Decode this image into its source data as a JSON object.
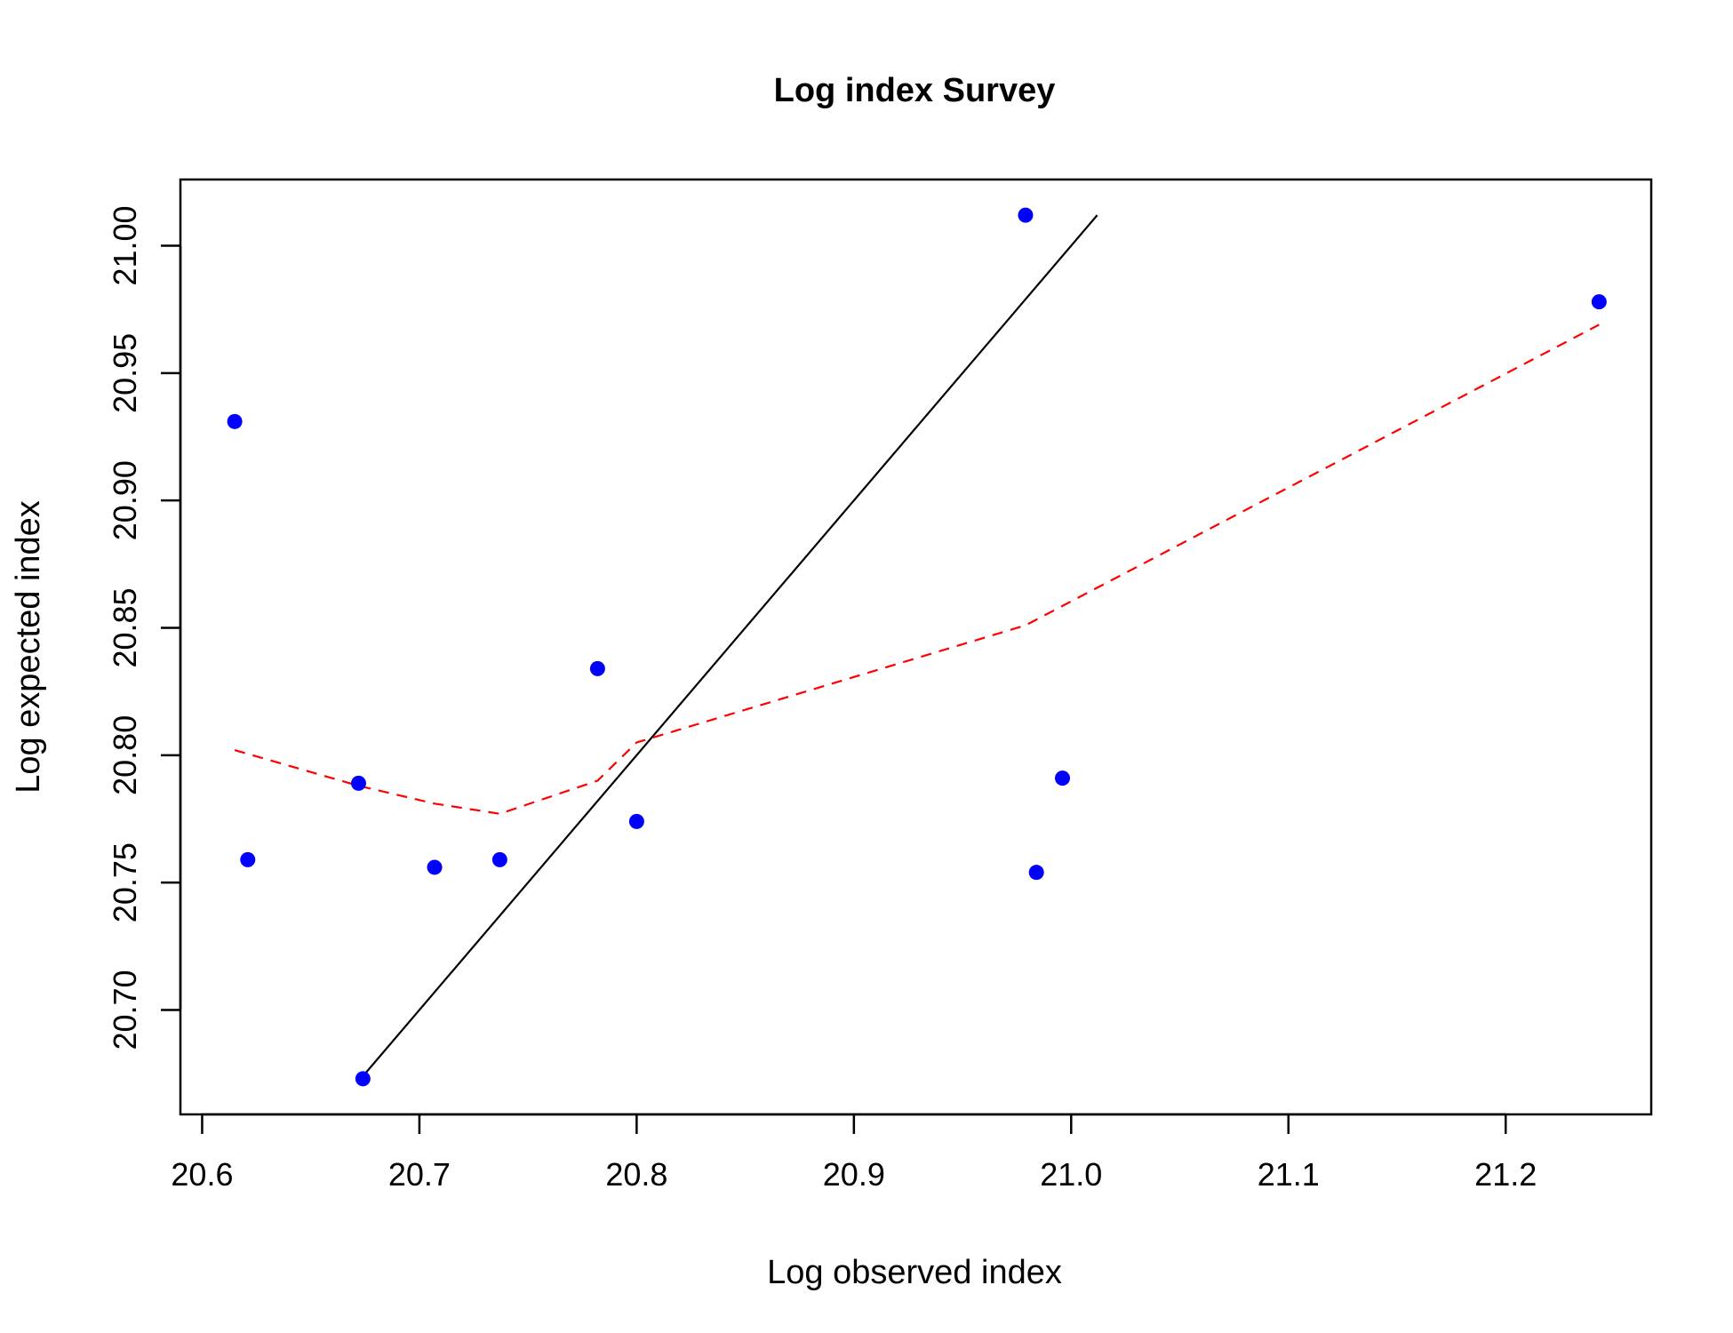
{
  "chart_data": {
    "type": "scatter",
    "title": "Log index Survey",
    "xlabel": "Log observed index",
    "ylabel": "Log expected index",
    "xlim": [
      20.59,
      21.267
    ],
    "ylim": [
      20.659,
      21.026
    ],
    "x_ticks": [
      20.6,
      20.7,
      20.8,
      20.9,
      21.0,
      21.1,
      21.2
    ],
    "x_tick_labels": [
      "20.6",
      "20.7",
      "20.8",
      "20.9",
      "21.0",
      "21.1",
      "21.2"
    ],
    "y_ticks": [
      20.7,
      20.75,
      20.8,
      20.85,
      20.9,
      20.95,
      21.0
    ],
    "y_tick_labels": [
      "20.70",
      "20.75",
      "20.80",
      "20.85",
      "20.90",
      "20.95",
      "21.00"
    ],
    "grid": false,
    "points": {
      "color": "#0000ff",
      "x": [
        20.615,
        20.621,
        20.672,
        20.674,
        20.707,
        20.737,
        20.782,
        20.8,
        20.979,
        20.984,
        20.996,
        21.243
      ],
      "y": [
        20.931,
        20.759,
        20.789,
        20.673,
        20.756,
        20.759,
        20.834,
        20.774,
        21.012,
        20.754,
        20.791,
        20.978
      ]
    },
    "lines": [
      {
        "style": "solid",
        "color": "#000000",
        "x": [
          20.673,
          21.012
        ],
        "y": [
          20.673,
          21.012
        ]
      },
      {
        "style": "dashed",
        "color": "#ff0000",
        "x": [
          20.615,
          20.672,
          20.707,
          20.737,
          20.782,
          20.8,
          20.979,
          21.243
        ],
        "y": [
          20.802,
          20.788,
          20.781,
          20.777,
          20.79,
          20.805,
          20.851,
          20.969
        ]
      }
    ]
  }
}
